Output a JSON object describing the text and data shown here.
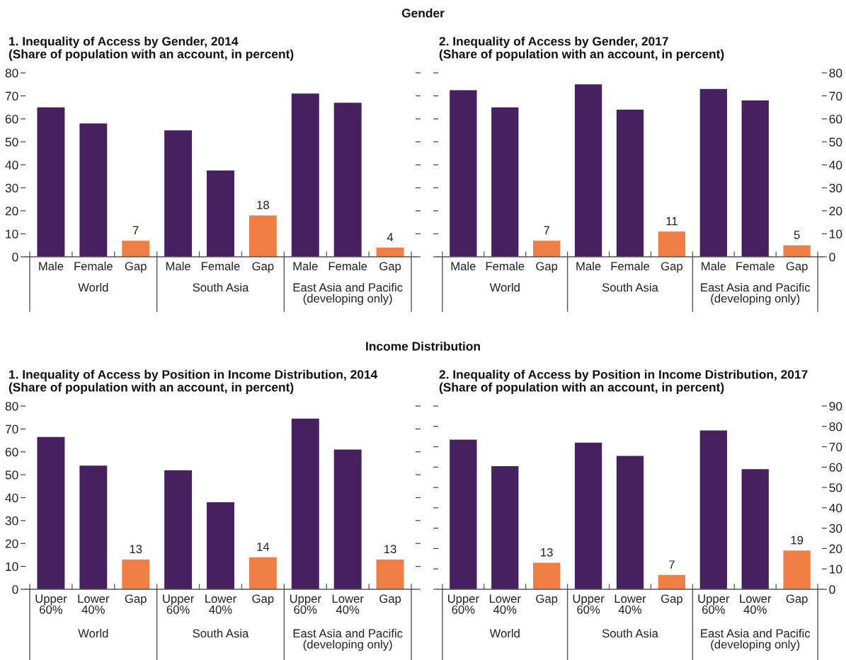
{
  "chart_data": [
    {
      "type": "bar",
      "subtitle": "Gender",
      "title": "1. Inequality of Access by Gender, 2014\n(Share of population with an account, in percent)",
      "categories": [
        "Male",
        "Female",
        "Gap",
        "Male",
        "Female",
        "Gap",
        "Male",
        "Female",
        "Gap"
      ],
      "series": [
        {
          "values": [
            65,
            58,
            7,
            55,
            37.5,
            18,
            71,
            67,
            4
          ],
          "colors": [
            "#46205f",
            "#46205f",
            "#f07f46",
            "#46205f",
            "#46205f",
            "#f07f46",
            "#46205f",
            "#46205f",
            "#f07f46"
          ],
          "value_labels": [
            null,
            null,
            "7",
            null,
            null,
            "18",
            null,
            null,
            "4"
          ]
        }
      ],
      "ylim": [
        0,
        80
      ],
      "yticks": [
        0,
        10,
        20,
        30,
        40,
        50,
        60,
        70,
        80
      ],
      "annotations": [
        "World",
        "South Asia",
        "East Asia and Pacific\n(developing only)"
      ]
    },
    {
      "type": "bar",
      "title": "2. Inequality of Access by Gender, 2017\n(Share of population with an account, in percent)",
      "categories": [
        "Male",
        "Female",
        "Gap",
        "Male",
        "Female",
        "Gap",
        "Male",
        "Female",
        "Gap"
      ],
      "series": [
        {
          "axis": "y2",
          "values": [
            72.5,
            65,
            7,
            75,
            64,
            11,
            73,
            68,
            5
          ],
          "colors": [
            "#46205f",
            "#46205f",
            "#f07f46",
            "#46205f",
            "#46205f",
            "#f07f46",
            "#46205f",
            "#46205f",
            "#f07f46"
          ],
          "value_labels": [
            null,
            null,
            "7",
            null,
            null,
            "11",
            null,
            null,
            "5"
          ]
        }
      ],
      "y2lim": [
        0,
        80
      ],
      "y2ticks": [
        0,
        10,
        20,
        30,
        40,
        50,
        60,
        70,
        80
      ],
      "annotations": [
        "World",
        "South Asia",
        "East Asia and Pacific\n(developing only)"
      ]
    },
    {
      "type": "bar",
      "subtitle": "Income Distribution",
      "title": "1. Inequality of Access by Position in Income Distribution, 2014\n(Share of population with an account, in percent)",
      "categories": [
        "Upper\n60%",
        "Lower\n40%",
        "Gap",
        "Upper\n60%",
        "Lower\n40%",
        "Gap",
        "Upper\n60%",
        "Lower\n40%",
        "Gap"
      ],
      "series": [
        {
          "values": [
            66.5,
            54,
            13,
            52,
            38,
            14,
            74.5,
            61,
            13
          ],
          "colors": [
            "#46205f",
            "#46205f",
            "#f07f46",
            "#46205f",
            "#46205f",
            "#f07f46",
            "#46205f",
            "#46205f",
            "#f07f46"
          ],
          "value_labels": [
            null,
            null,
            "13",
            null,
            null,
            "14",
            null,
            null,
            "13"
          ]
        }
      ],
      "ylim": [
        0,
        80
      ],
      "yticks": [
        0,
        10,
        20,
        30,
        40,
        50,
        60,
        70,
        80
      ],
      "annotations": [
        "World",
        "South Asia",
        "East Asia and Pacific\n(developing only)"
      ]
    },
    {
      "type": "bar",
      "title": "2. Inequality of Access by Position in Income Distribution, 2017\n(Share of population with an account, in percent)",
      "categories": [
        "Upper\n60%",
        "Lower\n40%",
        "Gap",
        "Upper\n60%",
        "Lower\n40%",
        "Gap",
        "Upper\n60%",
        "Lower\n40%",
        "Gap"
      ],
      "series": [
        {
          "axis": "y2",
          "values": [
            73.5,
            60.5,
            13,
            72,
            65.5,
            7,
            78,
            59,
            19
          ],
          "colors": [
            "#46205f",
            "#46205f",
            "#f07f46",
            "#46205f",
            "#46205f",
            "#f07f46",
            "#46205f",
            "#46205f",
            "#f07f46"
          ],
          "value_labels": [
            null,
            null,
            "13",
            null,
            null,
            "7",
            null,
            null,
            "19"
          ]
        }
      ],
      "y2lim": [
        0,
        90
      ],
      "y2ticks": [
        0,
        10,
        20,
        30,
        40,
        50,
        60,
        70,
        80,
        90
      ],
      "annotations": [
        "World",
        "South Asia",
        "East Asia and Pacific\n(developing only)"
      ]
    }
  ]
}
